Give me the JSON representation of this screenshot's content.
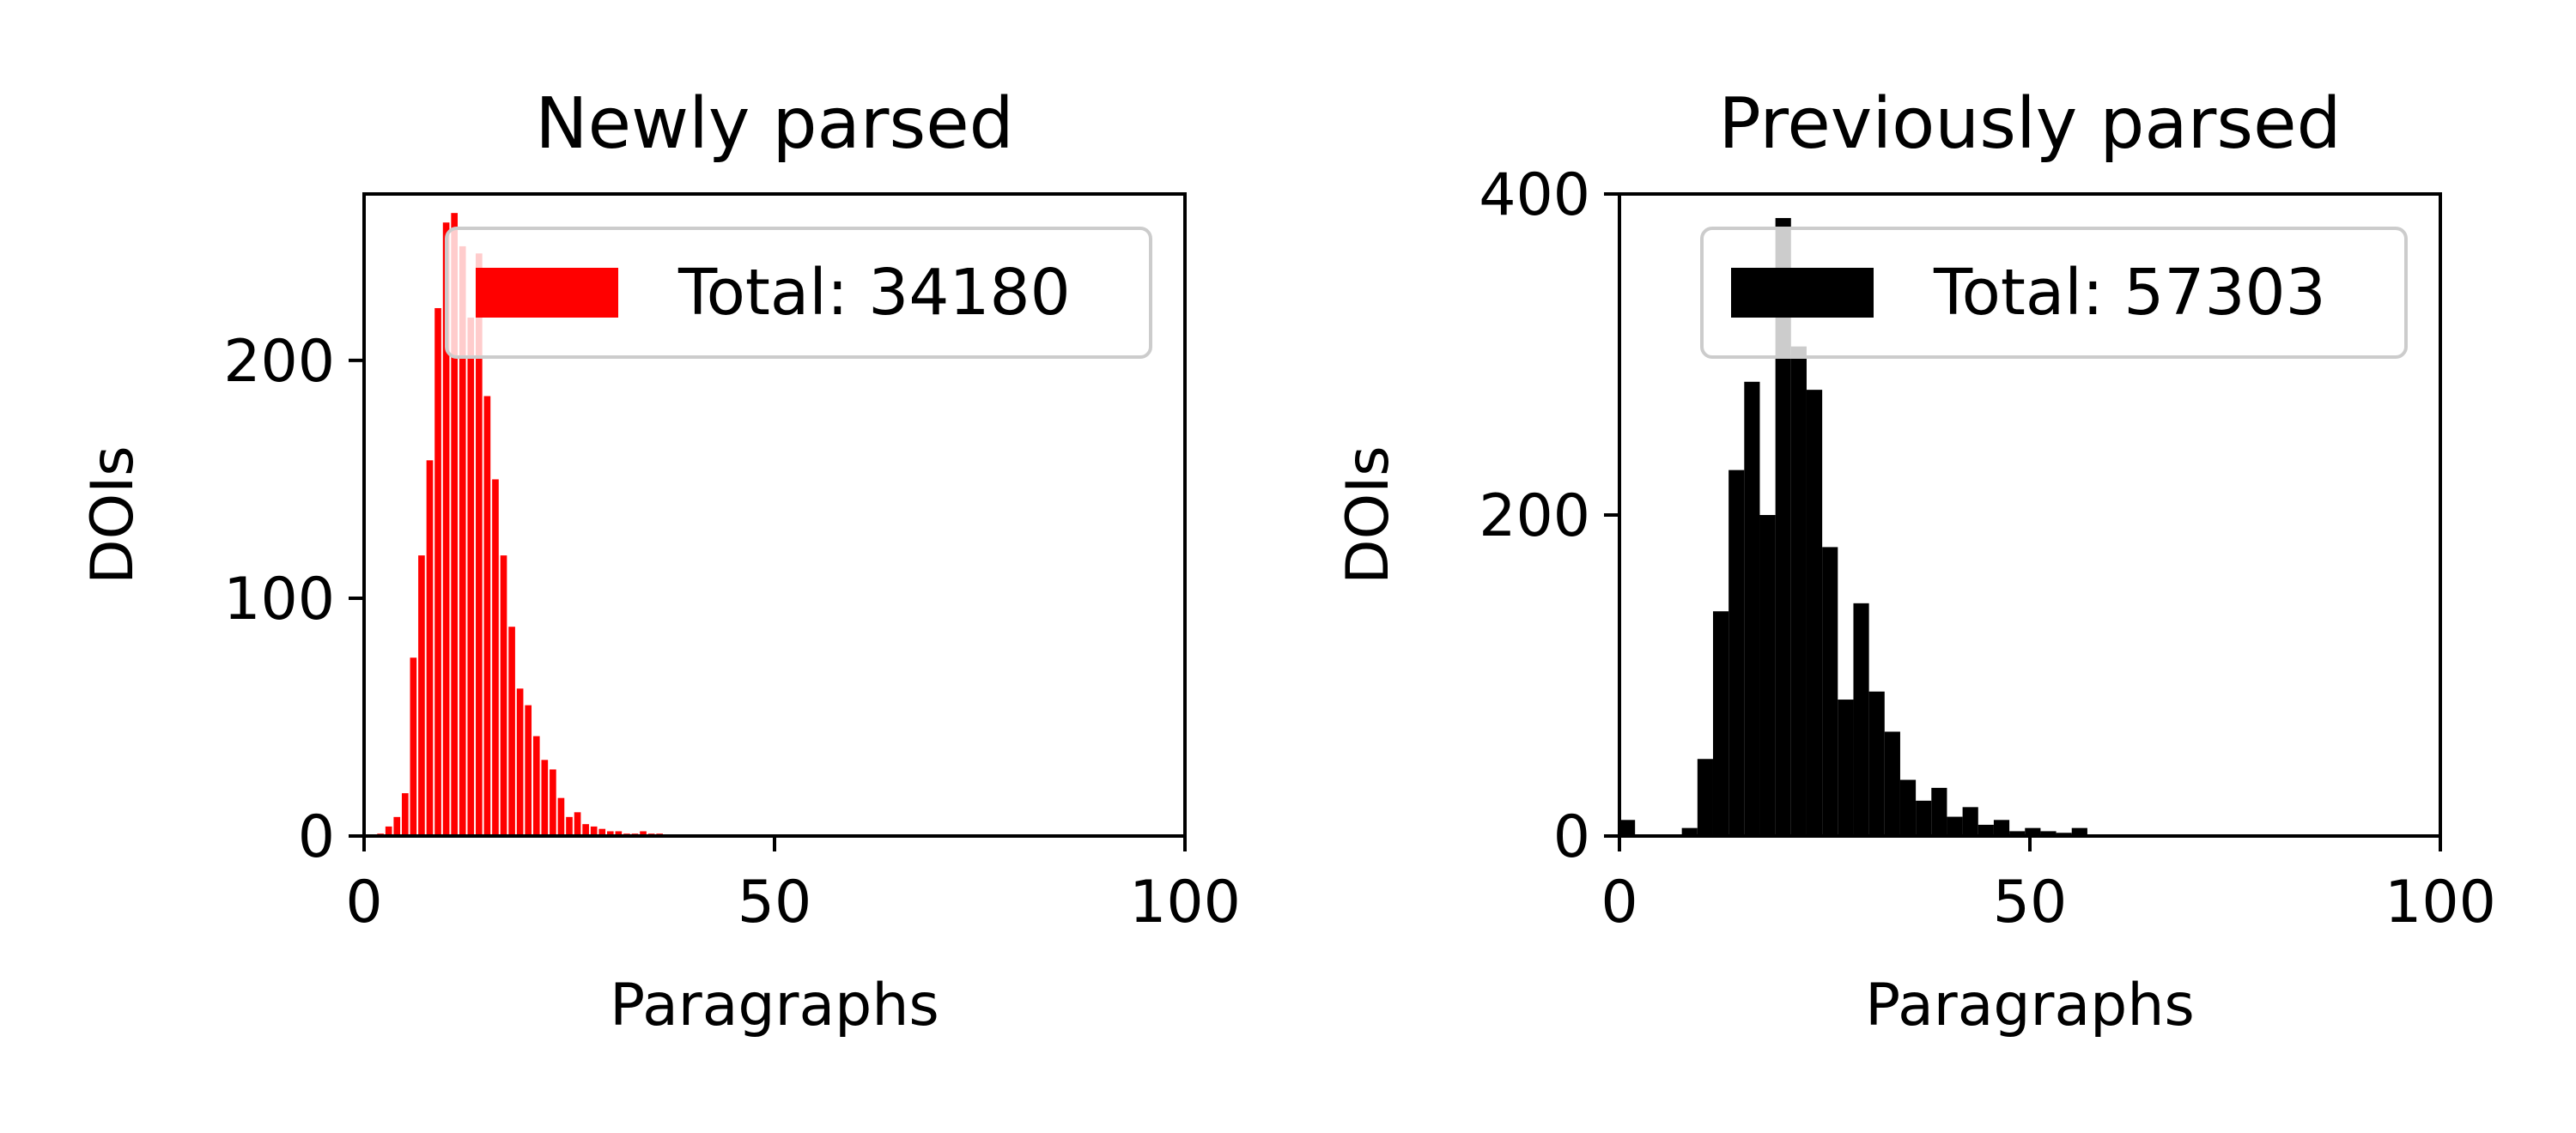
{
  "chart_data": [
    {
      "type": "bar",
      "title": "Newly parsed",
      "xlabel": "Paragraphs",
      "ylabel": "DOIs",
      "xlim": [
        0,
        100
      ],
      "ylim": [
        0,
        270
      ],
      "xticks": [
        "0",
        "50",
        "100"
      ],
      "yticks": [
        "0",
        "100",
        "200"
      ],
      "color": "#ff0000",
      "legend": {
        "label": "Total: 34180",
        "position": "top-right"
      },
      "bin_width": 0.8,
      "series": [
        {
          "x": [
            2,
            3,
            4,
            5,
            6,
            7,
            8,
            9,
            10,
            11,
            12,
            13,
            14,
            15,
            16,
            17,
            18,
            19,
            20,
            21,
            22,
            23,
            24,
            25,
            26,
            27,
            28,
            29,
            30,
            31,
            32,
            33,
            34,
            35,
            36,
            37,
            38,
            39,
            40
          ],
          "values": [
            1,
            4,
            8,
            18,
            75,
            118,
            158,
            222,
            258,
            262,
            248,
            218,
            245,
            185,
            150,
            118,
            88,
            62,
            55,
            42,
            32,
            28,
            16,
            8,
            10,
            5,
            4,
            3,
            2,
            2,
            1,
            1,
            2,
            1,
            1,
            0,
            0,
            0,
            0
          ]
        }
      ]
    },
    {
      "type": "bar",
      "title": "Previously parsed",
      "xlabel": "Paragraphs",
      "ylabel": "DOIs",
      "xlim": [
        0,
        100
      ],
      "ylim": [
        0,
        400
      ],
      "xticks": [
        "0",
        "50",
        "100"
      ],
      "yticks": [
        "0",
        "200",
        "400"
      ],
      "color": "#000000",
      "legend": {
        "label": "Total: 57303",
        "position": "top-right"
      },
      "bin_width": 1.9,
      "series": [
        {
          "x": [
            0.95,
            2.85,
            4.75,
            6.65,
            8.55,
            10.45,
            12.35,
            14.25,
            16.15,
            18.05,
            19.95,
            21.85,
            23.75,
            25.65,
            27.55,
            29.45,
            31.35,
            33.25,
            35.15,
            37.05,
            38.95,
            40.85,
            42.75,
            44.65,
            46.55,
            48.45,
            50.35,
            52.25,
            54.15,
            56.05
          ],
          "values": [
            10,
            0,
            0,
            0,
            5,
            48,
            140,
            228,
            283,
            200,
            385,
            305,
            278,
            180,
            85,
            145,
            90,
            65,
            35,
            22,
            30,
            12,
            18,
            7,
            10,
            3,
            5,
            3,
            2,
            5
          ]
        }
      ]
    }
  ]
}
